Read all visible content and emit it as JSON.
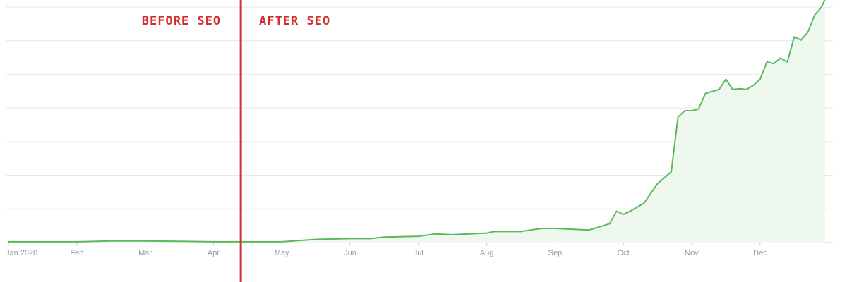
{
  "chart_data": {
    "type": "area",
    "title": "",
    "xlabel": "",
    "ylabel": "",
    "x_tick_labels": [
      "Jan 2020",
      "Feb",
      "Mar",
      "Apr",
      "May",
      "Jun",
      "Jul",
      "Aug",
      "Sep",
      "Oct",
      "Nov",
      "Dec"
    ],
    "ylim": [
      0,
      300
    ],
    "y_gridlines": [
      0,
      42.9,
      85.7,
      128.6,
      171.4,
      214.3,
      257.1,
      300
    ],
    "grid": true,
    "y_tick_labels_visible": false,
    "legend": "none",
    "line_color": "#5cb85c",
    "fill_color": "#eef8ee",
    "grid_color": "#e6e6e6",
    "series": [
      {
        "x": [
          0,
          0.5,
          1.0,
          1.5,
          2.0,
          2.5,
          3.0,
          3.4,
          3.5,
          4.0,
          4.5,
          5.0,
          5.3,
          5.5,
          6.0,
          6.25,
          6.5,
          7.0,
          7.1,
          7.5,
          7.8,
          8.0,
          8.5,
          8.8,
          8.9,
          9.0,
          9.1,
          9.3,
          9.5,
          9.7,
          9.8,
          9.9,
          10.0,
          10.1,
          10.2,
          10.4,
          10.5,
          10.6,
          10.7,
          10.8,
          10.9,
          11.0,
          11.1,
          11.2,
          11.3,
          11.4,
          11.5,
          11.6,
          11.7,
          11.8,
          11.9,
          11.95
        ],
        "values": [
          1,
          1,
          1,
          2,
          2,
          1.5,
          1,
          1,
          1,
          1,
          4,
          5,
          5,
          7,
          8,
          11,
          10,
          12,
          14,
          14,
          18,
          18,
          16,
          24,
          40,
          36,
          40,
          50,
          75,
          90,
          160,
          168,
          168,
          170,
          190,
          195,
          208,
          195,
          196,
          195,
          200,
          208,
          230,
          228,
          235,
          230,
          262,
          258,
          268,
          290,
          300,
          310
        ]
      }
    ],
    "annotations": [
      {
        "text": "BEFORE SEO",
        "x": 3.4,
        "side": "left"
      },
      {
        "text": "AFTER SEO",
        "x": 3.4,
        "side": "right"
      }
    ],
    "divider_x": 3.4,
    "divider_color": "#d32f2f"
  }
}
